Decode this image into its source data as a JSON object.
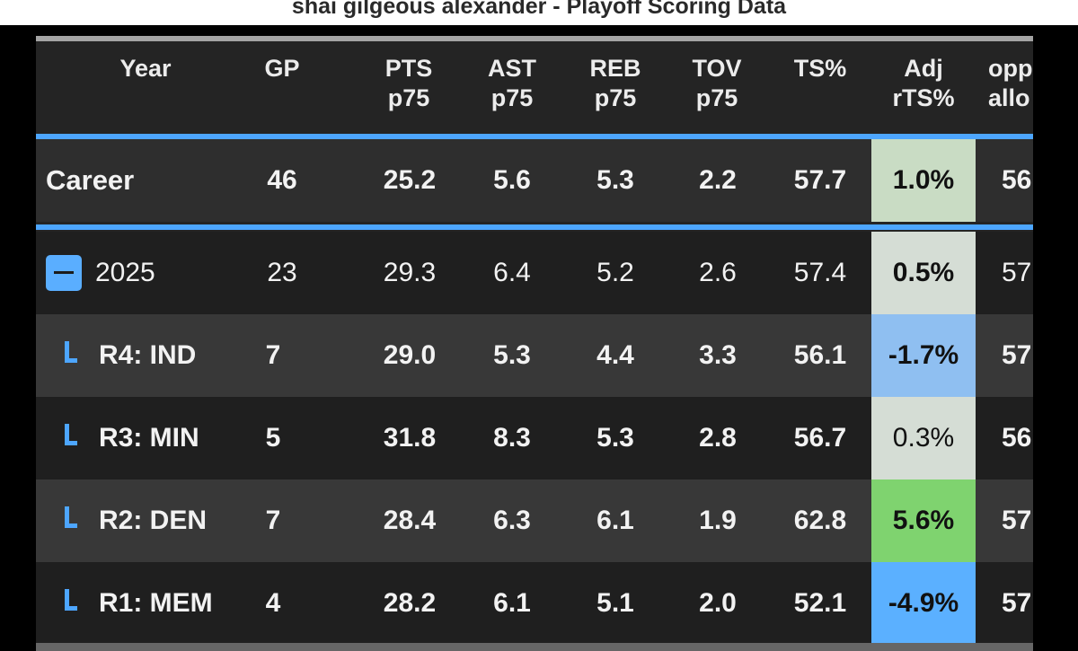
{
  "title": "shai gilgeous alexander - Playoff Scoring Data",
  "colors": {
    "header_blue_line": "#4da6ff",
    "adj_positive_strong": "#7fd36f",
    "adj_positive_light": "#c9dcc4",
    "adj_neutral": "#d5ddd5",
    "adj_negative_light": "#8fbff1",
    "adj_negative_strong": "#5bb0ff"
  },
  "headers": {
    "year": "Year",
    "gp": "GP",
    "pts_1": "PTS",
    "pts_2": "p75",
    "ast_1": "AST",
    "ast_2": "p75",
    "reb_1": "REB",
    "reb_2": "p75",
    "tov_1": "TOV",
    "tov_2": "p75",
    "ts": "TS%",
    "adj_1": "Adj",
    "adj_2": "rTS%",
    "opp_1": "opp",
    "opp_2": "allo"
  },
  "rows": [
    {
      "year": "Career",
      "gp": "46",
      "pts": "25.2",
      "ast": "5.6",
      "reb": "5.3",
      "tov": "2.2",
      "ts": "57.7",
      "adj": "1.0%",
      "opp": "56"
    },
    {
      "year": "2025",
      "gp": "23",
      "pts": "29.3",
      "ast": "6.4",
      "reb": "5.2",
      "tov": "2.6",
      "ts": "57.4",
      "adj": "0.5%",
      "opp": "57"
    },
    {
      "year": "R4: IND",
      "gp": "7",
      "pts": "29.0",
      "ast": "5.3",
      "reb": "4.4",
      "tov": "3.3",
      "ts": "56.1",
      "adj": "-1.7%",
      "opp": "57"
    },
    {
      "year": "R3: MIN",
      "gp": "5",
      "pts": "31.8",
      "ast": "8.3",
      "reb": "5.3",
      "tov": "2.8",
      "ts": "56.7",
      "adj": "0.3%",
      "opp": "56"
    },
    {
      "year": "R2: DEN",
      "gp": "7",
      "pts": "28.4",
      "ast": "6.3",
      "reb": "6.1",
      "tov": "1.9",
      "ts": "62.8",
      "adj": "5.6%",
      "opp": "57"
    },
    {
      "year": "R1: MEM",
      "gp": "4",
      "pts": "28.2",
      "ast": "6.1",
      "reb": "5.1",
      "tov": "2.0",
      "ts": "52.1",
      "adj": "-4.9%",
      "opp": "57"
    }
  ]
}
